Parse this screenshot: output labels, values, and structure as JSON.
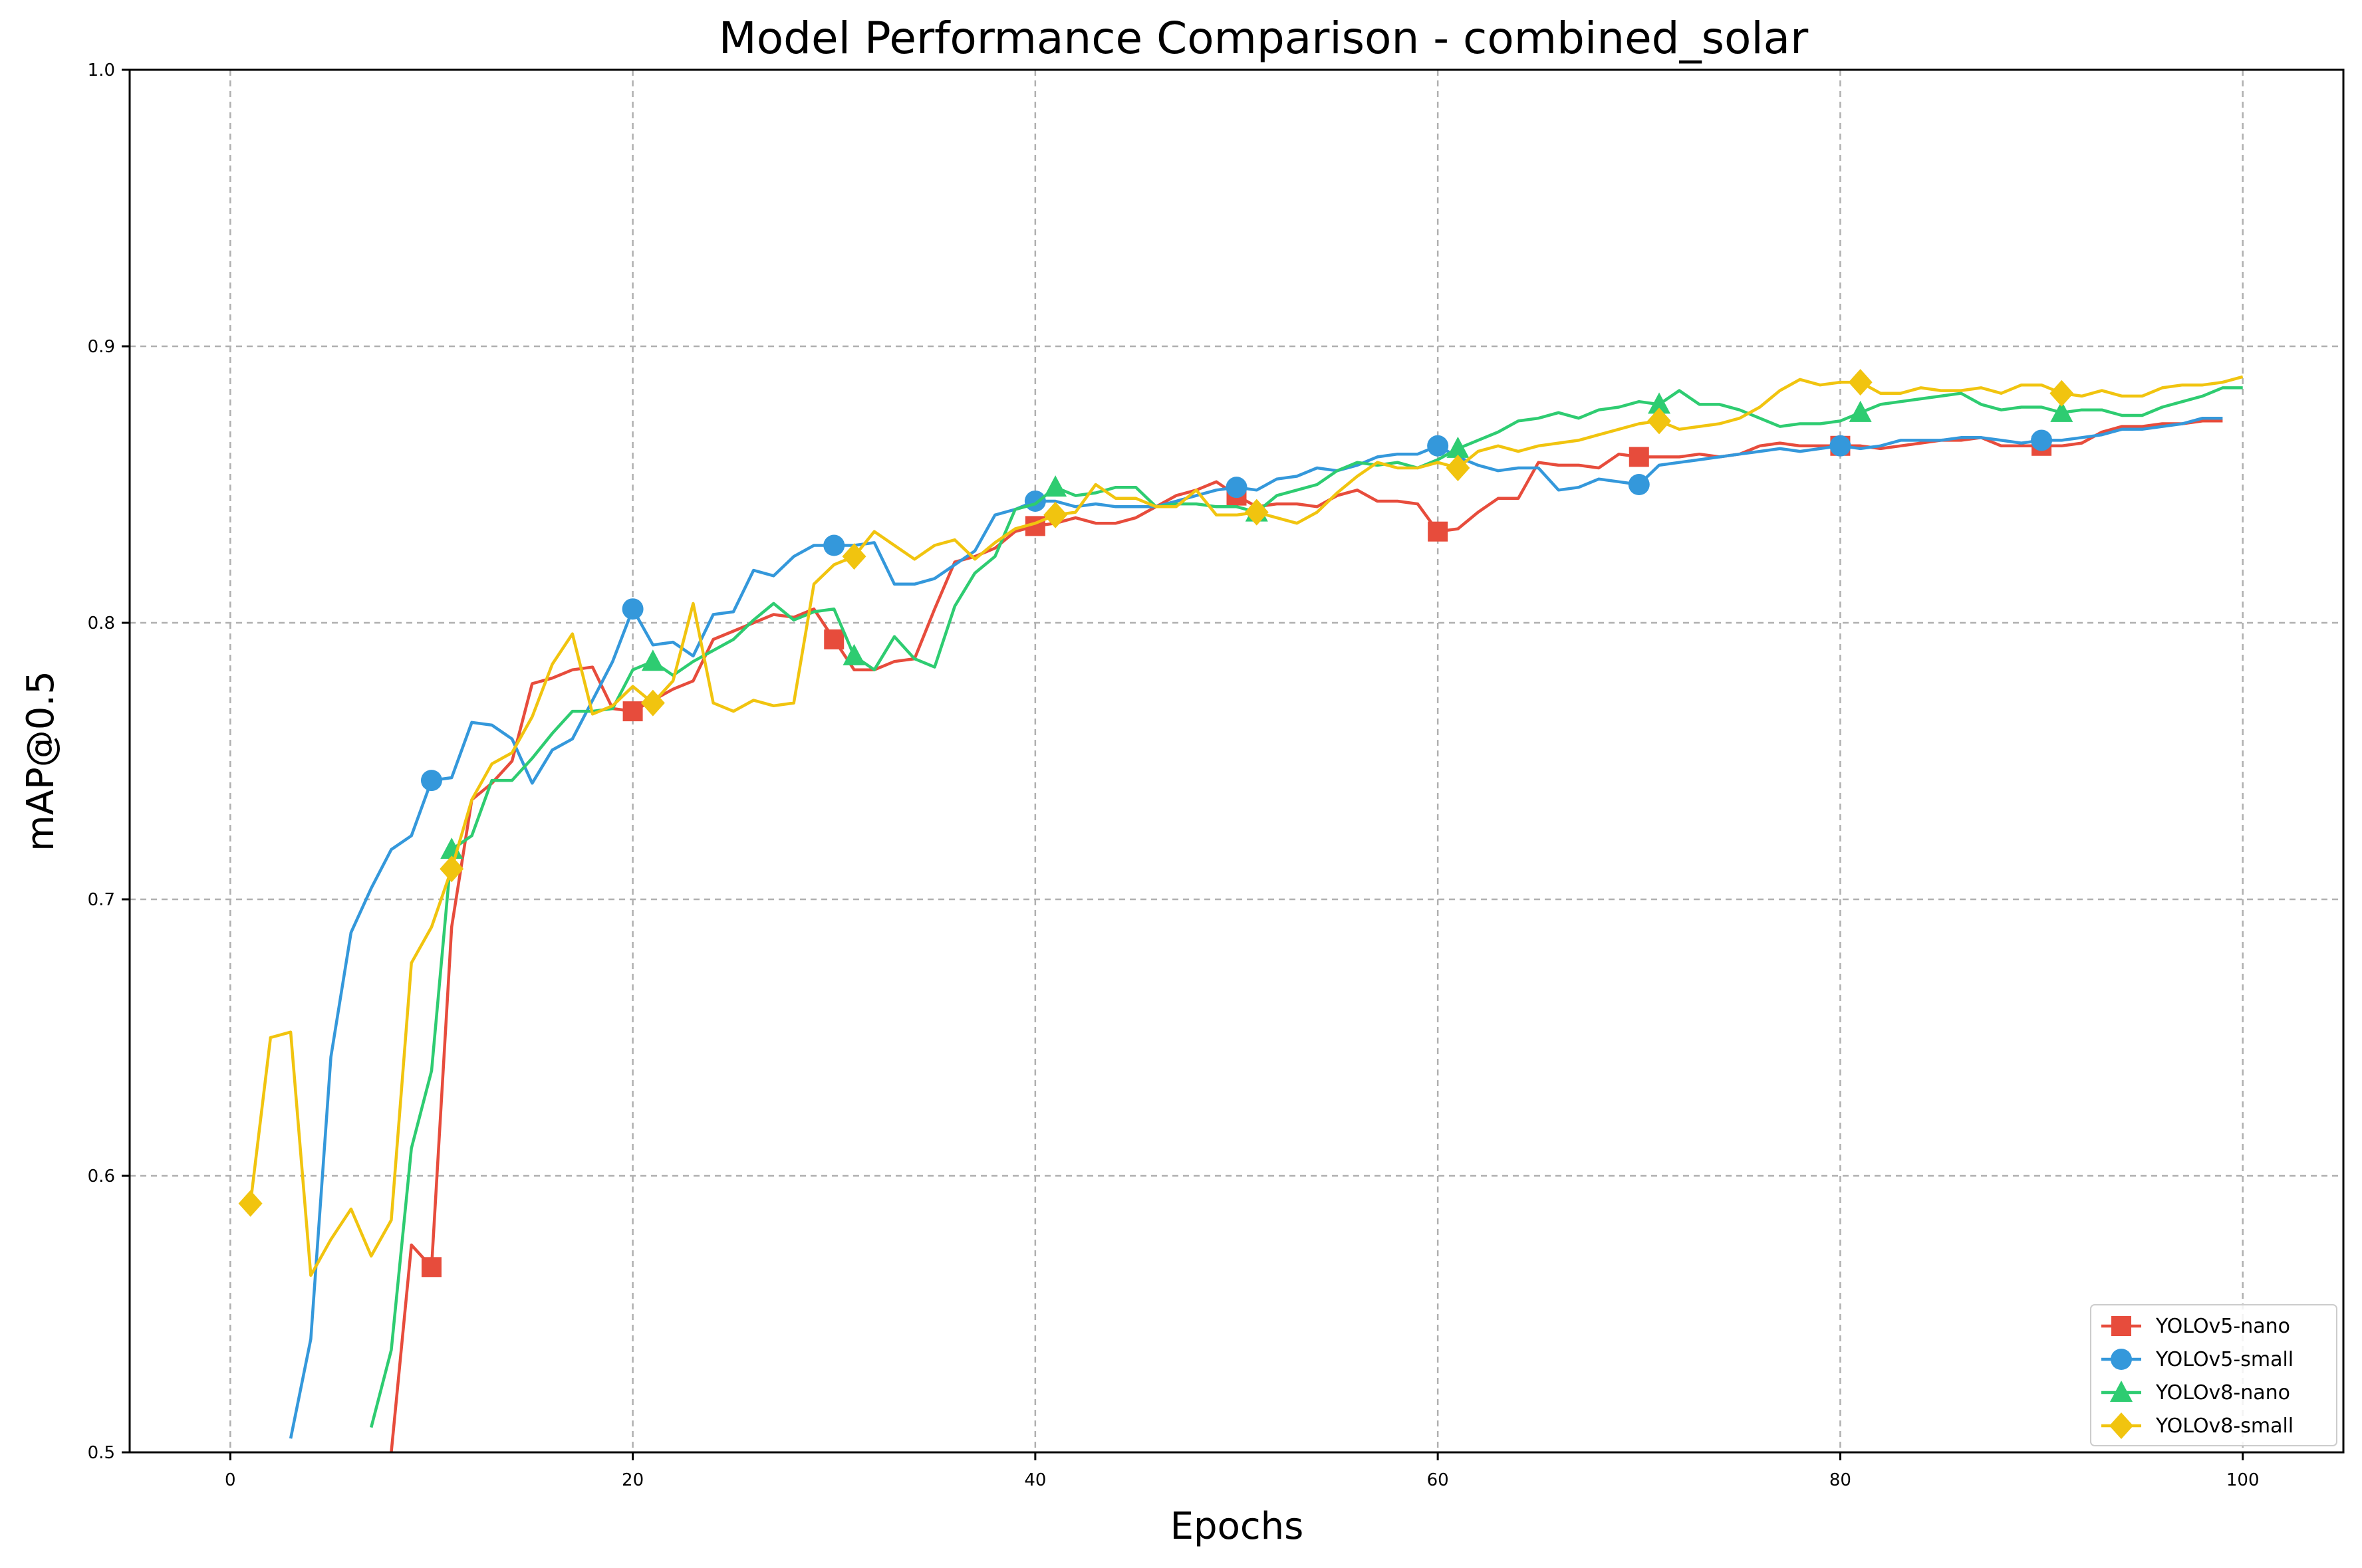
{
  "chart_data": {
    "type": "line",
    "title": "Model Performance Comparison - combined_solar",
    "xlabel": "Epochs",
    "ylabel": "mAP@0.5",
    "xlim": [
      -5,
      105
    ],
    "ylim": [
      0.5,
      1.0
    ],
    "xticks": [
      0,
      20,
      40,
      60,
      80,
      100
    ],
    "xtick_labels": [
      "0",
      "20",
      "40",
      "60",
      "80",
      "100"
    ],
    "yticks": [
      0.5,
      0.6,
      0.7,
      0.8,
      0.9,
      1.0
    ],
    "ytick_labels": [
      "0.5",
      "0.6",
      "0.7",
      "0.8",
      "0.9",
      "1.0"
    ],
    "grid": true,
    "legend_position": "lower-right",
    "series": [
      {
        "name": "YOLOv5-nano",
        "color": "#e74c3c",
        "marker": "square",
        "marker_every": 10,
        "marker_start": 10,
        "x": [
          8,
          9,
          10,
          11,
          12,
          13,
          14,
          15,
          16,
          17,
          18,
          19,
          20,
          21,
          22,
          23,
          24,
          25,
          26,
          27,
          28,
          29,
          30,
          31,
          32,
          33,
          34,
          35,
          36,
          37,
          38,
          39,
          40,
          41,
          42,
          43,
          44,
          45,
          46,
          47,
          48,
          49,
          50,
          51,
          52,
          53,
          54,
          55,
          56,
          57,
          58,
          59,
          60,
          61,
          62,
          63,
          64,
          65,
          66,
          67,
          68,
          69,
          70,
          71,
          72,
          73,
          74,
          75,
          76,
          77,
          78,
          79,
          80,
          81,
          82,
          83,
          84,
          85,
          86,
          87,
          88,
          89,
          90,
          91,
          92,
          93,
          94,
          95,
          96,
          97,
          98,
          99
        ],
        "y": [
          0.5,
          0.575,
          0.567,
          0.69,
          0.736,
          0.742,
          0.75,
          0.778,
          0.78,
          0.783,
          0.784,
          0.769,
          0.768,
          0.772,
          0.776,
          0.779,
          0.794,
          0.797,
          0.8,
          0.803,
          0.802,
          0.805,
          0.794,
          0.783,
          0.783,
          0.786,
          0.787,
          0.805,
          0.822,
          0.824,
          0.827,
          0.833,
          0.835,
          0.836,
          0.838,
          0.836,
          0.836,
          0.838,
          0.842,
          0.846,
          0.848,
          0.851,
          0.846,
          0.842,
          0.843,
          0.843,
          0.842,
          0.846,
          0.848,
          0.844,
          0.844,
          0.843,
          0.833,
          0.834,
          0.84,
          0.845,
          0.845,
          0.858,
          0.857,
          0.857,
          0.856,
          0.861,
          0.86,
          0.86,
          0.86,
          0.861,
          0.86,
          0.861,
          0.864,
          0.865,
          0.864,
          0.864,
          0.864,
          0.864,
          0.863,
          0.864,
          0.865,
          0.866,
          0.866,
          0.867,
          0.864,
          0.864,
          0.864,
          0.864,
          0.865,
          0.869,
          0.871,
          0.871,
          0.872,
          0.872,
          0.873,
          0.873
        ]
      },
      {
        "name": "YOLOv5-small",
        "color": "#3498db",
        "marker": "circle",
        "marker_every": 10,
        "marker_start": 10,
        "x": [
          3,
          4,
          5,
          6,
          7,
          8,
          9,
          10,
          11,
          12,
          13,
          14,
          15,
          16,
          17,
          18,
          19,
          20,
          21,
          22,
          23,
          24,
          25,
          26,
          27,
          28,
          29,
          30,
          31,
          32,
          33,
          34,
          35,
          36,
          37,
          38,
          39,
          40,
          41,
          42,
          43,
          44,
          45,
          46,
          47,
          48,
          49,
          50,
          51,
          52,
          53,
          54,
          55,
          56,
          57,
          58,
          59,
          60,
          61,
          62,
          63,
          64,
          65,
          66,
          67,
          68,
          69,
          70,
          71,
          72,
          73,
          74,
          75,
          76,
          77,
          78,
          79,
          80,
          81,
          82,
          83,
          84,
          85,
          86,
          87,
          88,
          89,
          90,
          91,
          92,
          93,
          94,
          95,
          96,
          97,
          98,
          99
        ],
        "y": [
          0.505,
          0.541,
          0.643,
          0.688,
          0.704,
          0.718,
          0.723,
          0.743,
          0.744,
          0.764,
          0.763,
          0.758,
          0.742,
          0.754,
          0.758,
          0.772,
          0.786,
          0.805,
          0.792,
          0.793,
          0.788,
          0.803,
          0.804,
          0.819,
          0.817,
          0.824,
          0.828,
          0.828,
          0.828,
          0.829,
          0.814,
          0.814,
          0.816,
          0.821,
          0.826,
          0.839,
          0.841,
          0.844,
          0.844,
          0.842,
          0.843,
          0.842,
          0.842,
          0.842,
          0.844,
          0.846,
          0.848,
          0.849,
          0.848,
          0.852,
          0.853,
          0.856,
          0.855,
          0.857,
          0.86,
          0.861,
          0.861,
          0.864,
          0.86,
          0.857,
          0.855,
          0.856,
          0.856,
          0.848,
          0.849,
          0.852,
          0.851,
          0.85,
          0.857,
          0.858,
          0.859,
          0.86,
          0.861,
          0.862,
          0.863,
          0.862,
          0.863,
          0.864,
          0.863,
          0.864,
          0.866,
          0.866,
          0.866,
          0.867,
          0.867,
          0.866,
          0.865,
          0.866,
          0.866,
          0.867,
          0.868,
          0.87,
          0.87,
          0.871,
          0.872,
          0.874,
          0.874
        ]
      },
      {
        "name": "YOLOv8-nano",
        "color": "#2ecc71",
        "marker": "triangle",
        "marker_every": 10,
        "marker_start": 11,
        "x": [
          7,
          8,
          9,
          10,
          11,
          12,
          13,
          14,
          15,
          16,
          17,
          18,
          19,
          20,
          21,
          22,
          23,
          24,
          25,
          26,
          27,
          28,
          29,
          30,
          31,
          32,
          33,
          34,
          35,
          36,
          37,
          38,
          39,
          40,
          41,
          42,
          43,
          44,
          45,
          46,
          47,
          48,
          49,
          50,
          51,
          52,
          53,
          54,
          55,
          56,
          57,
          58,
          59,
          60,
          61,
          62,
          63,
          64,
          65,
          66,
          67,
          68,
          69,
          70,
          71,
          72,
          73,
          74,
          75,
          76,
          77,
          78,
          79,
          80,
          81,
          82,
          83,
          84,
          85,
          86,
          87,
          88,
          89,
          90,
          91,
          92,
          93,
          94,
          95,
          96,
          97,
          98,
          99,
          100
        ],
        "y": [
          0.509,
          0.537,
          0.61,
          0.638,
          0.718,
          0.723,
          0.743,
          0.743,
          0.751,
          0.76,
          0.768,
          0.768,
          0.769,
          0.783,
          0.786,
          0.781,
          0.786,
          0.79,
          0.794,
          0.801,
          0.807,
          0.801,
          0.804,
          0.805,
          0.788,
          0.783,
          0.795,
          0.787,
          0.784,
          0.806,
          0.818,
          0.824,
          0.841,
          0.843,
          0.849,
          0.846,
          0.847,
          0.849,
          0.849,
          0.842,
          0.843,
          0.843,
          0.842,
          0.842,
          0.84,
          0.846,
          0.848,
          0.85,
          0.855,
          0.858,
          0.857,
          0.858,
          0.856,
          0.859,
          0.863,
          0.866,
          0.869,
          0.873,
          0.874,
          0.876,
          0.874,
          0.877,
          0.878,
          0.88,
          0.879,
          0.884,
          0.879,
          0.879,
          0.877,
          0.874,
          0.871,
          0.872,
          0.872,
          0.873,
          0.876,
          0.879,
          0.88,
          0.881,
          0.882,
          0.883,
          0.879,
          0.877,
          0.878,
          0.878,
          0.876,
          0.877,
          0.877,
          0.875,
          0.875,
          0.878,
          0.88,
          0.882,
          0.885,
          0.885
        ]
      },
      {
        "name": "YOLOv8-small",
        "color": "#f1c40f",
        "marker": "diamond",
        "marker_every": 10,
        "marker_start": 1,
        "x": [
          1,
          2,
          3,
          4,
          5,
          6,
          7,
          8,
          9,
          10,
          11,
          12,
          13,
          14,
          15,
          16,
          17,
          18,
          19,
          20,
          21,
          22,
          23,
          24,
          25,
          26,
          27,
          28,
          29,
          30,
          31,
          32,
          33,
          34,
          35,
          36,
          37,
          38,
          39,
          40,
          41,
          42,
          43,
          44,
          45,
          46,
          47,
          48,
          49,
          50,
          51,
          52,
          53,
          54,
          55,
          56,
          57,
          58,
          59,
          60,
          61,
          62,
          63,
          64,
          65,
          66,
          67,
          68,
          69,
          70,
          71,
          72,
          73,
          74,
          75,
          76,
          77,
          78,
          79,
          80,
          81,
          82,
          83,
          84,
          85,
          86,
          87,
          88,
          89,
          90,
          91,
          92,
          93,
          94,
          95,
          96,
          97,
          98,
          99,
          100
        ],
        "y": [
          0.59,
          0.65,
          0.652,
          0.564,
          0.577,
          0.588,
          0.571,
          0.584,
          0.677,
          0.69,
          0.711,
          0.736,
          0.749,
          0.753,
          0.766,
          0.785,
          0.796,
          0.767,
          0.77,
          0.777,
          0.771,
          0.779,
          0.807,
          0.771,
          0.768,
          0.772,
          0.77,
          0.771,
          0.814,
          0.821,
          0.824,
          0.833,
          0.828,
          0.823,
          0.828,
          0.83,
          0.823,
          0.829,
          0.834,
          0.836,
          0.839,
          0.84,
          0.85,
          0.845,
          0.845,
          0.842,
          0.842,
          0.848,
          0.839,
          0.839,
          0.84,
          0.838,
          0.836,
          0.84,
          0.847,
          0.853,
          0.858,
          0.856,
          0.856,
          0.858,
          0.856,
          0.862,
          0.864,
          0.862,
          0.864,
          0.865,
          0.866,
          0.868,
          0.87,
          0.872,
          0.873,
          0.87,
          0.871,
          0.872,
          0.874,
          0.878,
          0.884,
          0.888,
          0.886,
          0.887,
          0.887,
          0.883,
          0.883,
          0.885,
          0.884,
          0.884,
          0.885,
          0.883,
          0.886,
          0.886,
          0.883,
          0.882,
          0.884,
          0.882,
          0.882,
          0.885,
          0.886,
          0.886,
          0.887,
          0.889
        ]
      }
    ]
  }
}
